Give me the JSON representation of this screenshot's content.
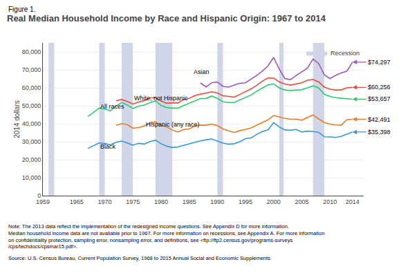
{
  "chart_data": {
    "type": "line",
    "subtitle": "Figure 1.",
    "title": "Real Median Household Income by Race and Hispanic Origin: 1967 to 2014",
    "ylabel": "2014 dollars",
    "xlim": [
      1959,
      2016
    ],
    "xticks": [
      1959,
      1965,
      1970,
      1975,
      1980,
      1985,
      1990,
      1995,
      2000,
      2005,
      2010,
      2014
    ],
    "ylim": [
      0,
      85000
    ],
    "yticks": [
      0,
      {
        "value": 10000,
        "label": "10,000"
      },
      {
        "value": 20000,
        "label": "20,000"
      },
      {
        "value": 30000,
        "label": "30,000"
      },
      {
        "value": 40000,
        "label": "40,000"
      },
      {
        "value": 50000,
        "label": "50,000"
      },
      {
        "value": 60000,
        "label": "60,000"
      },
      {
        "value": 70000,
        "label": "70,000"
      },
      {
        "value": 80000,
        "label": "80,000"
      }
    ],
    "grid": "y",
    "legend": "upper right",
    "bands": {
      "name": "Recession",
      "color": "#d0d5e8",
      "periods": [
        [
          1960,
          1961
        ],
        [
          1969,
          1970
        ],
        [
          1973,
          1975
        ],
        [
          1979,
          1982
        ],
        [
          1990,
          1991
        ],
        [
          2001,
          2001.75
        ],
        [
          2007,
          2009
        ]
      ]
    },
    "series": [
      {
        "name": "All races",
        "color": "#2ecc71",
        "x": [
          1967,
          1968,
          1969,
          1970,
          1971,
          1972,
          1973,
          1974,
          1975,
          1976,
          1977,
          1978,
          1979,
          1980,
          1981,
          1982,
          1983,
          1984,
          1985,
          1986,
          1987,
          1988,
          1989,
          1990,
          1991,
          1992,
          1993,
          1994,
          1995,
          1996,
          1997,
          1998,
          1999,
          2000,
          2001,
          2002,
          2003,
          2004,
          2005,
          2006,
          2007,
          2008,
          2009,
          2010,
          2011,
          2012,
          2013,
          2014
        ],
        "values": [
          44000,
          46500,
          48700,
          48200,
          47200,
          49800,
          51900,
          50400,
          48500,
          49800,
          50400,
          51700,
          52700,
          50200,
          49000,
          48700,
          48700,
          50100,
          51300,
          52800,
          54000,
          54100,
          55400,
          54100,
          52200,
          51800,
          51800,
          53300,
          54800,
          56000,
          58100,
          60000,
          61600,
          62200,
          59900,
          58800,
          58400,
          58800,
          58900,
          60000,
          61100,
          59900,
          56400,
          55200,
          54500,
          54200,
          53800,
          53657
        ],
        "value_labels": [
          null,
          null,
          null,
          null,
          null,
          null,
          null,
          null,
          null,
          null,
          null,
          null,
          null,
          null,
          null,
          null,
          null,
          null,
          null,
          null,
          null,
          null,
          null,
          null,
          null,
          null,
          null,
          null,
          null,
          null,
          null,
          null,
          null,
          null,
          null,
          null,
          null,
          null,
          null,
          null,
          null,
          null,
          null,
          null,
          null,
          null,
          null,
          "$53,657"
        ]
      },
      {
        "name": "White, not Hispanic",
        "color": "#e74c3c",
        "x": [
          1972,
          1973,
          1974,
          1975,
          1976,
          1977,
          1978,
          1979,
          1980,
          1981,
          1982,
          1983,
          1984,
          1985,
          1986,
          1987,
          1988,
          1989,
          1990,
          1991,
          1992,
          1993,
          1994,
          1995,
          1996,
          1997,
          1998,
          1999,
          2000,
          2001,
          2002,
          2003,
          2004,
          2005,
          2006,
          2007,
          2008,
          2009,
          2010,
          2011,
          2012,
          2013,
          2014
        ],
        "values": [
          52800,
          53500,
          52400,
          51000,
          52100,
          52800,
          54300,
          54600,
          52600,
          51400,
          51600,
          51600,
          53400,
          54100,
          55700,
          56500,
          57000,
          57800,
          57100,
          55600,
          55200,
          54800,
          56300,
          57800,
          59400,
          61400,
          63700,
          65500,
          65400,
          63300,
          62100,
          61500,
          62200,
          62800,
          64200,
          64600,
          63300,
          60400,
          59200,
          58800,
          58800,
          60010,
          60256
        ],
        "value_labels": [
          null,
          null,
          null,
          null,
          null,
          null,
          null,
          null,
          null,
          null,
          null,
          null,
          null,
          null,
          null,
          null,
          null,
          null,
          null,
          null,
          null,
          null,
          null,
          null,
          null,
          null,
          null,
          null,
          null,
          null,
          null,
          null,
          null,
          null,
          null,
          null,
          null,
          null,
          null,
          null,
          null,
          null,
          "$60,256"
        ]
      },
      {
        "name": "Asian",
        "color": "#9b59b6",
        "x": [
          1987,
          1988,
          1989,
          1990,
          1991,
          1992,
          1993,
          1994,
          1995,
          1996,
          1997,
          1998,
          1999,
          2000,
          2001,
          2002,
          2003,
          2004,
          2005,
          2006,
          2007,
          2008,
          2009,
          2010,
          2011,
          2012,
          2013,
          2014
        ],
        "values": [
          62700,
          60500,
          62800,
          63200,
          60800,
          60400,
          61500,
          62500,
          62800,
          64700,
          66900,
          69300,
          72200,
          76900,
          70400,
          65100,
          64600,
          66900,
          68900,
          70900,
          76000,
          73500,
          67200,
          65100,
          66900,
          68300,
          69200,
          74297
        ],
        "value_labels": [
          null,
          null,
          null,
          null,
          null,
          null,
          null,
          null,
          null,
          null,
          null,
          null,
          null,
          null,
          null,
          null,
          null,
          null,
          null,
          null,
          null,
          null,
          null,
          null,
          null,
          null,
          null,
          "$74,297"
        ]
      },
      {
        "name": "Hispanic (any race)",
        "color": "#e67e22",
        "x": [
          1972,
          1973,
          1974,
          1975,
          1976,
          1977,
          1978,
          1979,
          1980,
          1981,
          1982,
          1983,
          1984,
          1985,
          1986,
          1987,
          1988,
          1989,
          1990,
          1991,
          1992,
          1993,
          1994,
          1995,
          1996,
          1997,
          1998,
          1999,
          2000,
          2001,
          2002,
          2003,
          2004,
          2005,
          2006,
          2007,
          2008,
          2009,
          2010,
          2011,
          2012,
          2013,
          2014
        ],
        "values": [
          39000,
          40100,
          39500,
          37500,
          37900,
          38700,
          40500,
          41100,
          39000,
          38300,
          36500,
          35400,
          36800,
          37100,
          38700,
          39200,
          39200,
          39800,
          39000,
          37100,
          36100,
          35100,
          36200,
          36800,
          37700,
          39200,
          40500,
          42200,
          44600,
          43700,
          43000,
          42500,
          42600,
          42000,
          43500,
          44900,
          42700,
          40700,
          39800,
          39300,
          39200,
          42200,
          42491
        ],
        "value_labels": [
          null,
          null,
          null,
          null,
          null,
          null,
          null,
          null,
          null,
          null,
          null,
          null,
          null,
          null,
          null,
          null,
          null,
          null,
          null,
          null,
          null,
          null,
          null,
          null,
          null,
          null,
          null,
          null,
          null,
          null,
          null,
          null,
          null,
          null,
          null,
          null,
          null,
          null,
          null,
          null,
          null,
          null,
          "$42,491"
        ]
      },
      {
        "name": "Black",
        "color": "#3498db",
        "x": [
          1967,
          1968,
          1969,
          1970,
          1971,
          1972,
          1973,
          1974,
          1975,
          1976,
          1977,
          1978,
          1979,
          1980,
          1981,
          1982,
          1983,
          1984,
          1985,
          1986,
          1987,
          1988,
          1989,
          1990,
          1991,
          1992,
          1993,
          1994,
          1995,
          1996,
          1997,
          1998,
          1999,
          2000,
          2001,
          2002,
          2003,
          2004,
          2005,
          2006,
          2007,
          2008,
          2009,
          2010,
          2011,
          2012,
          2013,
          2014
        ],
        "values": [
          26300,
          27700,
          29300,
          29000,
          28300,
          29700,
          30400,
          29300,
          28100,
          29100,
          28700,
          30000,
          30900,
          28900,
          27500,
          26800,
          27100,
          28000,
          28900,
          29700,
          30500,
          31100,
          31500,
          30400,
          29200,
          28600,
          28900,
          30000,
          31700,
          32100,
          34100,
          35700,
          36600,
          40600,
          38200,
          36600,
          36400,
          36800,
          35400,
          35900,
          35700,
          35200,
          32800,
          32700,
          32400,
          33000,
          34200,
          35398
        ],
        "value_labels": [
          null,
          null,
          null,
          null,
          null,
          null,
          null,
          null,
          null,
          null,
          null,
          null,
          null,
          null,
          null,
          null,
          null,
          null,
          null,
          null,
          null,
          null,
          null,
          null,
          null,
          null,
          null,
          null,
          null,
          null,
          null,
          null,
          null,
          null,
          null,
          null,
          null,
          null,
          null,
          null,
          null,
          null,
          null,
          null,
          null,
          null,
          null,
          "$35,398"
        ]
      }
    ],
    "annotations": [
      {
        "text": "Asian",
        "x": 1985.5,
        "y": 66000
      },
      {
        "text": "White, not Hispanic",
        "x": 1975,
        "y": 51500
      },
      {
        "text": "All races",
        "x": 1969,
        "y": 47000
      },
      {
        "text": "Hispanic (any race)",
        "x": 1977,
        "y": 37000
      },
      {
        "text": "Black",
        "x": 1969,
        "y": 24500
      },
      {
        "text": "Note: The 2013 data reflect the implementation of the redesigned income questions. See Appendix D for more information.\nMedian household income data are not available prior to 1967. For more information on recessions, see Appendix A. For more information\non confidentiality protection, sampling error, nonsampling error, and definitions, see <ftp://ftp2.census.gov/programs-surveys\n/cps/techdocs/cpsmar15.pdf>."
      },
      {
        "text": "Source: U.S. Census Bureau, Current Population Survey, 1968 to 2015 Annual Social and Economic Supplements."
      }
    ]
  }
}
